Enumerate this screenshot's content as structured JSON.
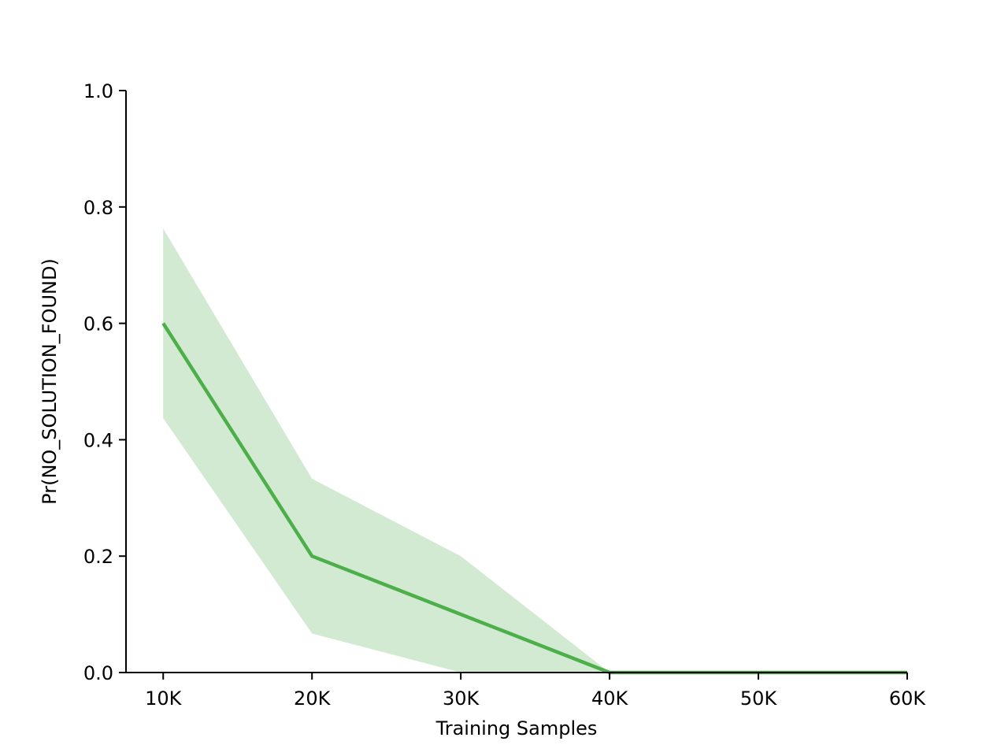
{
  "chart_data": {
    "type": "line",
    "title": "",
    "xlabel": "Training Samples",
    "ylabel": "Pr(NO_SOLUTION_FOUND)",
    "x": [
      10000,
      20000,
      30000,
      40000,
      50000,
      60000
    ],
    "x_tick_labels": [
      "10K",
      "20K",
      "30K",
      "40K",
      "50K",
      "60K"
    ],
    "y_ticks": [
      0.0,
      0.2,
      0.4,
      0.6,
      0.8,
      1.0
    ],
    "y_tick_labels": [
      "0.0",
      "0.2",
      "0.4",
      "0.6",
      "0.8",
      "1.0"
    ],
    "xlim": [
      7500,
      60000
    ],
    "ylim": [
      0,
      1.0
    ],
    "grid": false,
    "series": [
      {
        "values": [
          0.6,
          0.2,
          0.1,
          0.0,
          0.0,
          0.0
        ],
        "lower": [
          0.437,
          0.067,
          0.0,
          0.0,
          0.0,
          0.0
        ],
        "upper": [
          0.763,
          0.333,
          0.2,
          0.0,
          0.0,
          0.0
        ],
        "color": "#4daf4a",
        "band_color": "#d2ead2"
      }
    ]
  }
}
